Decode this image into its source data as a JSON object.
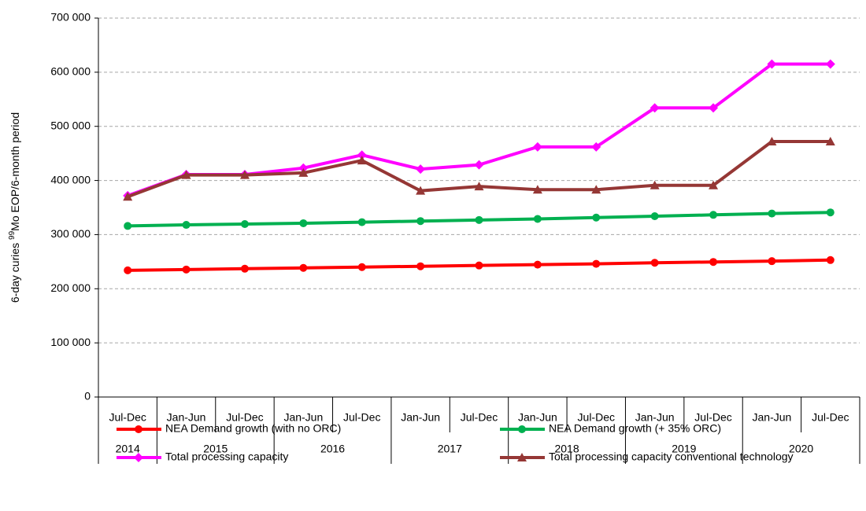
{
  "chart_data": {
    "type": "line",
    "y_label_prefix": "6-day curies ",
    "y_label_sup": "99",
    "y_label_suffix": "Mo EOP/6-month period",
    "categories": [
      "Jul-Dec",
      "Jan-Jun",
      "Jul-Dec",
      "Jan-Jun",
      "Jul-Dec",
      "Jan-Jun",
      "Jul-Dec",
      "Jan-Jun",
      "Jul-Dec",
      "Jan-Jun",
      "Jul-Dec",
      "Jan-Jun",
      "Jul-Dec"
    ],
    "year_labels": [
      "2014",
      "2015",
      null,
      "2016",
      null,
      "2017",
      null,
      "2018",
      null,
      "2019",
      null,
      "2020",
      null
    ],
    "ylim": [
      0,
      700000
    ],
    "yticks": [
      0,
      {
        "value": 100000,
        "label": "100 000"
      },
      {
        "value": 200000,
        "label": "200 000"
      },
      {
        "value": 300000,
        "label": "300 000"
      },
      {
        "value": 400000,
        "label": "400 000"
      },
      {
        "value": 500000,
        "label": "500 000"
      },
      {
        "value": 600000,
        "label": "600 000"
      },
      {
        "value": 700000,
        "label": "700 000"
      }
    ],
    "grid": true,
    "series": [
      {
        "name": "NEA Demand growth (with no ORC)",
        "color": "#ff0000",
        "marker": "circle",
        "values": [
          234000,
          235500,
          237000,
          238500,
          240000,
          241500,
          243000,
          244500,
          246000,
          248000,
          249500,
          251000,
          253000
        ]
      },
      {
        "name": "NEA Demand growth (+ 35% ORC)",
        "color": "#00b050",
        "marker": "circle",
        "values": [
          316000,
          318000,
          319500,
          321000,
          323000,
          325000,
          327000,
          329000,
          331500,
          334000,
          336500,
          339000,
          341000
        ]
      },
      {
        "name": "Total processing capacity",
        "color": "#ff00ff",
        "marker": "diamond",
        "values": [
          372000,
          411000,
          411000,
          423000,
          447000,
          421000,
          429000,
          462000,
          462000,
          534000,
          534000,
          615000,
          615000
        ]
      },
      {
        "name": "Total processing capacity conventional technology",
        "color": "#953735",
        "marker": "triangle",
        "values": [
          370000,
          410000,
          410000,
          414000,
          437000,
          381000,
          389000,
          383000,
          383000,
          391000,
          391000,
          472000,
          472000
        ]
      }
    ]
  }
}
